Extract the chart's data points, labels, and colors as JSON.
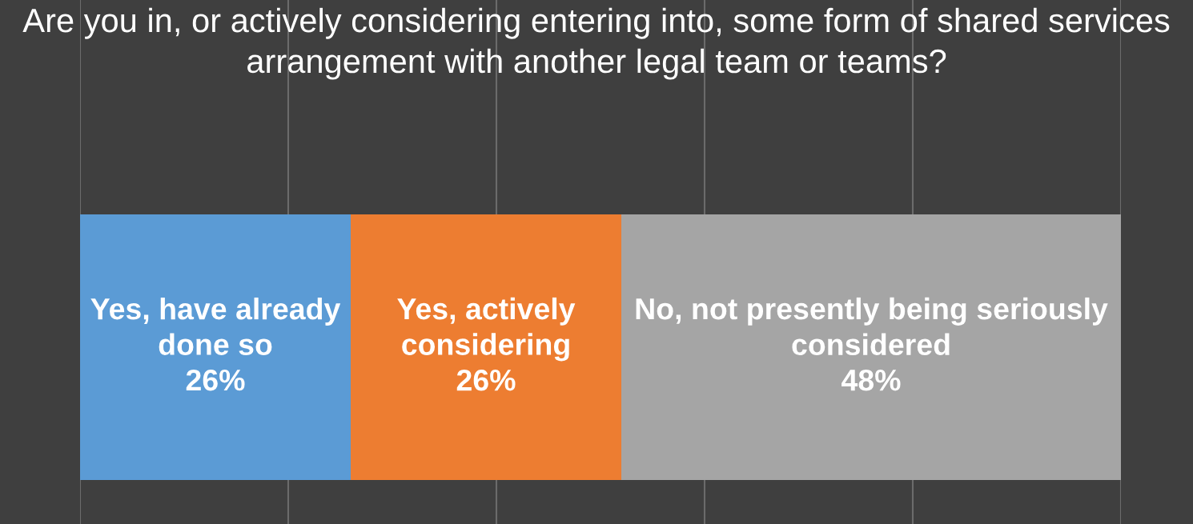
{
  "chart_data": {
    "type": "bar",
    "orientation": "horizontal",
    "stacked": true,
    "title": "Are you in, or actively considering entering into, some form of shared services arrangement with another legal team or teams?",
    "categories": [
      null
    ],
    "series": [
      {
        "name": "Yes, have already done so",
        "color": "#5b9bd5",
        "values": [
          26
        ],
        "value_labels": [
          "26%"
        ]
      },
      {
        "name": "Yes, actively considering",
        "color": "#ed7d31",
        "values": [
          26
        ],
        "value_labels": [
          "26%"
        ]
      },
      {
        "name": "No, not presently being seriously considered",
        "color": "#a5a5a5",
        "values": [
          48
        ],
        "value_labels": [
          "48%"
        ]
      }
    ],
    "xlim": [
      0,
      100
    ],
    "xticks": [
      {
        "value": 0,
        "label": null
      },
      {
        "value": 20,
        "label": null
      },
      {
        "value": 40,
        "label": null
      },
      {
        "value": 60,
        "label": null
      },
      {
        "value": 80,
        "label": null
      },
      {
        "value": 100,
        "label": null
      }
    ],
    "grid": "x",
    "legend": false
  }
}
